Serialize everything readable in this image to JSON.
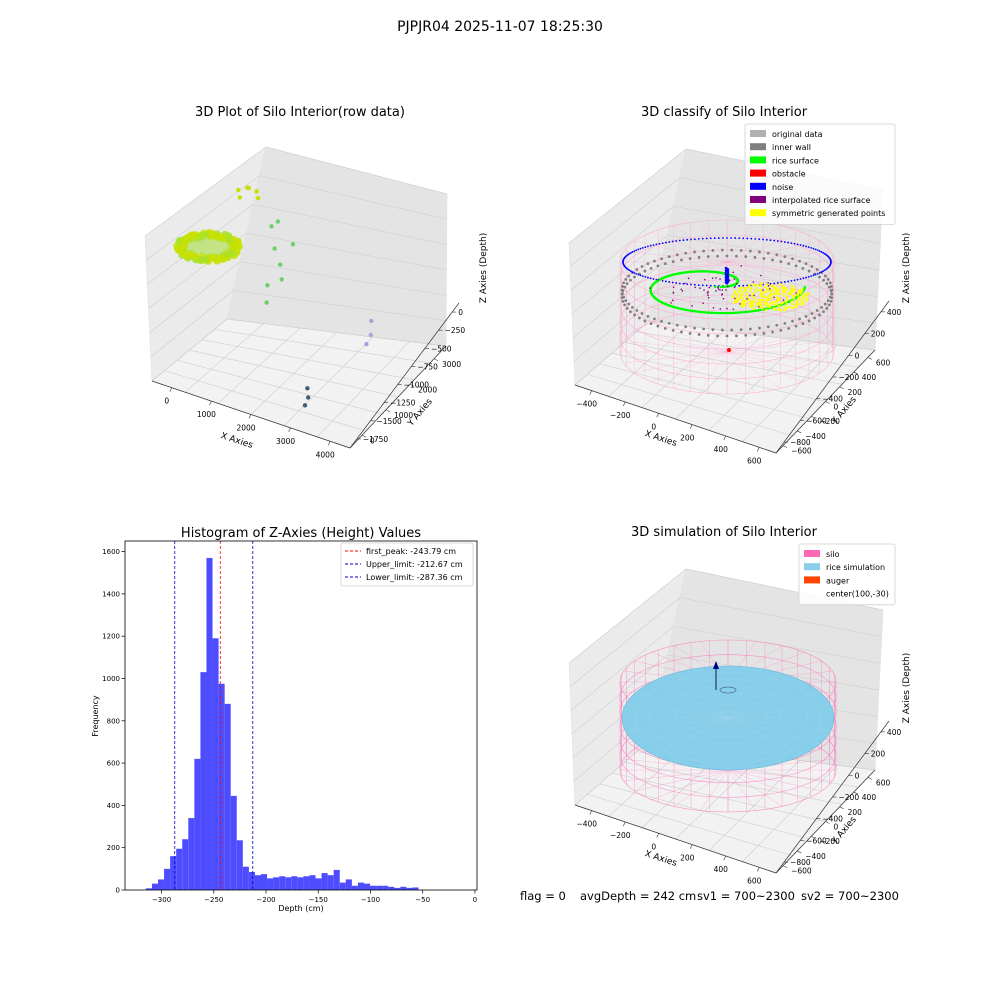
{
  "suptitle": "PJPJR04 2025-11-07 18:25:30",
  "footer": {
    "flag": "flag = 0",
    "avg_depth": "avgDepth = 242 cm",
    "sv1": "sv1 = 700~2300",
    "sv2": "sv2 = 700~2300"
  },
  "colors": {
    "histogram_bar": "#4d4dff",
    "first_peak": "#ff0000",
    "limits": "#0000cc",
    "silo_wire": "#ff69b4",
    "rice_simulation": "#87ceeb",
    "auger": "#ff4500"
  },
  "chart_data": [
    {
      "id": "raw",
      "type": "scatter3d",
      "title": "3D Plot of Silo Interior(row data)",
      "xlabel": "X Axies",
      "ylabel": "Y Axies",
      "zlabel": "Z Axies (Depth)",
      "xticks": [
        "0",
        "1000",
        "2000",
        "3000",
        "4000"
      ],
      "yticks": [
        "0",
        "1000",
        "2000",
        "3000"
      ],
      "zticks": [
        "0",
        "−250",
        "−500",
        "−750",
        "−1000",
        "−1250",
        "−1500",
        "−1750"
      ],
      "xlim": [
        -500,
        4500
      ],
      "ylim": [
        -500,
        3500
      ],
      "zlim": [
        -1900,
        100
      ],
      "clusters": [
        {
          "description_color": "#c8e000",
          "points": [
            [
              -200,
              2600,
              -300
            ],
            [
              0,
              2650,
              -250
            ],
            [
              200,
              2700,
              -280
            ],
            [
              -100,
              2500,
              -350
            ],
            [
              100,
              2550,
              -200
            ],
            [
              300,
              2600,
              -320
            ]
          ]
        },
        {
          "description_color": "#6ccf6c",
          "points": [
            [
              700,
              2500,
              -600
            ],
            [
              900,
              2300,
              -800
            ],
            [
              1100,
              2200,
              -950
            ],
            [
              1300,
              2400,
              -700
            ],
            [
              900,
              2000,
              -1200
            ],
            [
              1000,
              1800,
              -1350
            ],
            [
              1200,
              2100,
              -1100
            ],
            [
              800,
              2600,
              -550
            ]
          ]
        },
        {
          "description_color": "#b39ddb",
          "points": [
            [
              3400,
              2200,
              -1300
            ],
            [
              3450,
              2100,
              -1450
            ],
            [
              3400,
              2000,
              -1550
            ]
          ]
        },
        {
          "description_color": "#3b5e7a",
          "points": [
            [
              3000,
              200,
              -1600
            ],
            [
              3050,
              150,
              -1700
            ],
            [
              3000,
              100,
              -1800
            ]
          ]
        }
      ]
    },
    {
      "id": "classify",
      "type": "scatter3d",
      "title": "3D classify of Silo Interior",
      "xlabel": "X Axies",
      "ylabel": "Y Axies",
      "zlabel": "Z Axies (Depth)",
      "xticks": [
        "−400",
        "−200",
        "0",
        "200",
        "400",
        "600"
      ],
      "yticks": [
        "−600",
        "−400",
        "−200",
        "0",
        "200",
        "400",
        "600"
      ],
      "zticks": [
        "−800",
        "−600",
        "−400",
        "−200",
        "0",
        "200",
        "400"
      ],
      "legend": [
        "original data",
        "inner wall",
        "rice surface",
        "obstacle",
        "noise",
        "interpolated rice surface",
        "symmetric generated points"
      ],
      "legend_colors": [
        "#b0b0b0",
        "#808080",
        "#00ff00",
        "#ff0000",
        "#0000ff",
        "#800080",
        "#ffff00"
      ],
      "legend_loc": "upper right"
    },
    {
      "id": "histogram",
      "type": "bar",
      "title": "Histogram of Z-Axies (Height) Values",
      "xlabel": "Depth (cm)",
      "ylabel": "Frequency",
      "xlim": [
        -335,
        2
      ],
      "ylim": [
        0,
        1650
      ],
      "xticks": [
        -300,
        -250,
        -200,
        -150,
        -100,
        -50,
        0
      ],
      "xtick_labels": [
        "−300",
        "−250",
        "−200",
        "−150",
        "−100",
        "−50",
        "0"
      ],
      "yticks": [
        0,
        200,
        400,
        600,
        800,
        1000,
        1200,
        1400,
        1600
      ],
      "bin_start": -315,
      "bin_width": 5.8,
      "values": [
        8,
        30,
        50,
        100,
        160,
        195,
        240,
        340,
        620,
        1030,
        1570,
        1190,
        975,
        880,
        445,
        235,
        110,
        85,
        70,
        75,
        55,
        60,
        65,
        60,
        65,
        60,
        65,
        70,
        55,
        80,
        70,
        95,
        35,
        50,
        20,
        35,
        30,
        20,
        20,
        20,
        15,
        10,
        15,
        10,
        12
      ],
      "lines": [
        {
          "label": "first_peak: -243.79 cm",
          "x": -243.79,
          "color": "#ff0000"
        },
        {
          "label": "Upper_limit: -212.67 cm",
          "x": -212.67,
          "color": "#0000cc"
        },
        {
          "label": "Lower_limit: -287.36 cm",
          "x": -287.36,
          "color": "#0000cc"
        }
      ],
      "legend_loc": "upper right"
    },
    {
      "id": "simulation",
      "type": "surface3d",
      "title": "3D simulation of Silo Interior",
      "xlabel": "X Axies",
      "ylabel": "Y Axies",
      "zlabel": "Z Axies (Depth)",
      "xticks": [
        "−400",
        "−200",
        "0",
        "200",
        "400",
        "600"
      ],
      "yticks": [
        "−600",
        "−400",
        "−200",
        "0",
        "200",
        "400",
        "600"
      ],
      "zticks": [
        "−800",
        "−600",
        "−400",
        "−200",
        "0",
        "200",
        "400"
      ],
      "legend": [
        "silo",
        "rice simulation",
        "auger",
        "center(100,-30)"
      ],
      "legend_colors": [
        "#ff69b4",
        "#87ceeb",
        "#ff4500",
        ""
      ],
      "legend_loc": "upper right"
    }
  ]
}
